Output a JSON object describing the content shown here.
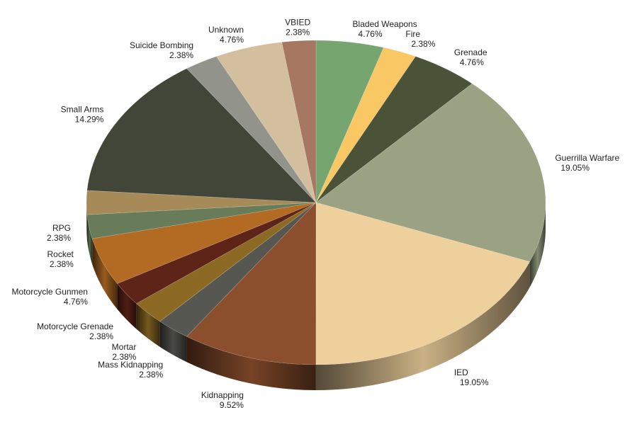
{
  "chart_data": {
    "type": "pie",
    "style": "3d",
    "title": "",
    "legend": "none",
    "slices": [
      {
        "label": "Bladed Weapons",
        "value": 4.76,
        "value_label": "4.76%",
        "color": "#77a56f"
      },
      {
        "label": "Fire",
        "value": 2.38,
        "value_label": "2.38%",
        "color": "#f9c764"
      },
      {
        "label": "Grenade",
        "value": 4.76,
        "value_label": "4.76%",
        "color": "#4a5238"
      },
      {
        "label": "Guerrilla Warfare",
        "value": 19.05,
        "value_label": "19.05%",
        "color": "#9aa283"
      },
      {
        "label": "IED",
        "value": 19.05,
        "value_label": "19.05%",
        "color": "#eed09c"
      },
      {
        "label": "Kidnapping",
        "value": 9.52,
        "value_label": "9.52%",
        "color": "#8c4f2e"
      },
      {
        "label": "Mass Kidnapping",
        "value": 2.38,
        "value_label": "2.38%",
        "color": "#575752"
      },
      {
        "label": "Mortar",
        "value": 2.38,
        "value_label": "2.38%",
        "color": "#8c6a23"
      },
      {
        "label": "Motorcycle Grenade",
        "value": 2.38,
        "value_label": "2.38%",
        "color": "#5e2418"
      },
      {
        "label": "Motorcycle Gunmen",
        "value": 4.76,
        "value_label": "4.76%",
        "color": "#b36b23"
      },
      {
        "label": "Rocket",
        "value": 2.38,
        "value_label": "2.38%",
        "color": "#687c5a"
      },
      {
        "label": "RPG",
        "value": 2.38,
        "value_label": "2.38%",
        "color": "#a68b58"
      },
      {
        "label": "Small Arms",
        "value": 14.29,
        "value_label": "14.29%",
        "color": "#424638"
      },
      {
        "label": "Suicide Bombing",
        "value": 2.38,
        "value_label": "2.38%",
        "color": "#92938a"
      },
      {
        "label": "Unknown",
        "value": 4.76,
        "value_label": "4.76%",
        "color": "#d3be9d"
      },
      {
        "label": "VBIED",
        "value": 2.38,
        "value_label": "2.38%",
        "color": "#a67862"
      }
    ]
  }
}
